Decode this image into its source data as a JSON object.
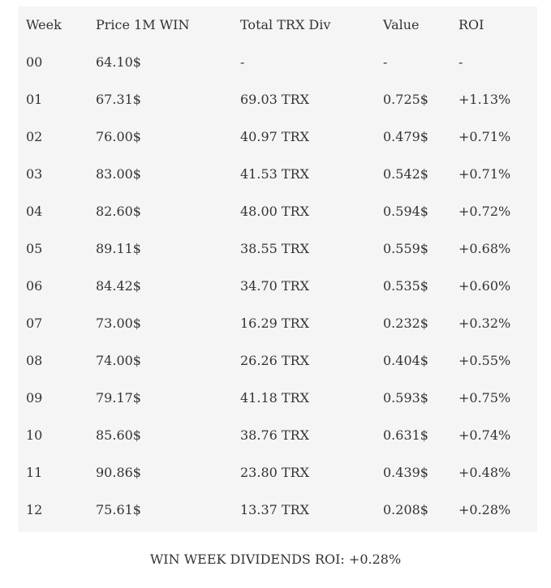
{
  "table": {
    "header": [
      "Week",
      "Price 1M WIN",
      "Total TRX Div",
      "Value",
      "ROI"
    ],
    "rows": [
      [
        "00",
        "64.10$",
        "-",
        "-",
        "-"
      ],
      [
        "01",
        "67.31$",
        "69.03 TRX",
        "0.725$",
        "+1.13%"
      ],
      [
        "02",
        "76.00$",
        "40.97 TRX",
        "0.479$",
        "+0.71%"
      ],
      [
        "03",
        "83.00$",
        "41.53 TRX",
        "0.542$",
        "+0.71%"
      ],
      [
        "04",
        "82.60$",
        "48.00 TRX",
        "0.594$",
        "+0.72%"
      ],
      [
        "05",
        "89.11$",
        "38.55 TRX",
        "0.559$",
        "+0.68%"
      ],
      [
        "06",
        "84.42$",
        "34.70 TRX",
        "0.535$",
        "+0.60%"
      ],
      [
        "07",
        "73.00$",
        "16.29 TRX",
        "0.232$",
        "+0.32%"
      ],
      [
        "08",
        "74.00$",
        "26.26 TRX",
        "0.404$",
        "+0.55%"
      ],
      [
        "09",
        "79.17$",
        "41.18 TRX",
        "0.593$",
        "+0.75%"
      ],
      [
        "10",
        "85.60$",
        "38.76 TRX",
        "0.631$",
        "+0.74%"
      ],
      [
        "11",
        "90.86$",
        "23.80 TRX",
        "0.439$",
        "+0.48%"
      ],
      [
        "12",
        "75.61$",
        "13.37 TRX",
        "0.208$",
        "+0.28%"
      ]
    ]
  },
  "caption": "WIN WEEK DIVIDENDS ROI: +0.28%"
}
